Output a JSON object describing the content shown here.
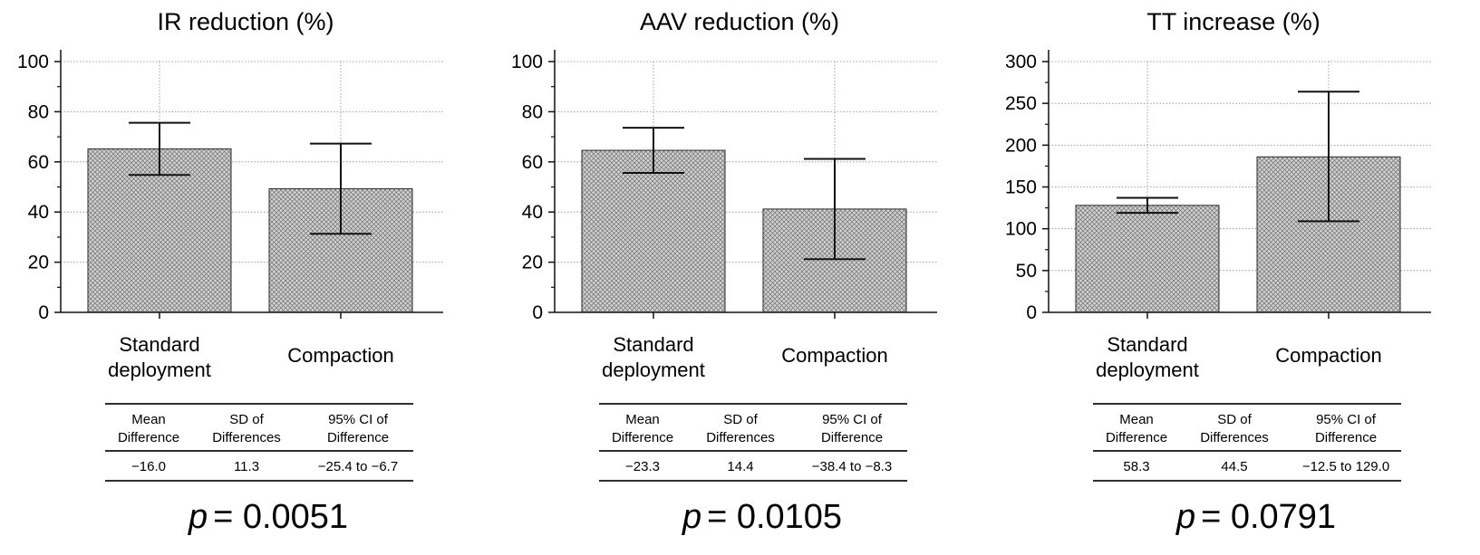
{
  "chart_data": [
    {
      "type": "bar",
      "title": "IR reduction (%)",
      "categories": [
        "Standard deployment",
        "Compaction"
      ],
      "values": [
        65.2,
        49.3
      ],
      "error_low": [
        54.8,
        31.3
      ],
      "error_high": [
        75.6,
        67.3
      ],
      "ylim": [
        0,
        100
      ],
      "yticks": [
        0,
        20,
        40,
        60,
        80,
        100
      ],
      "grid": true,
      "table": {
        "headers": [
          "Mean Difference",
          "SD of Differences",
          "95% CI of Difference"
        ],
        "values": [
          "−16.0",
          "11.3",
          "−25.4 to −6.7"
        ]
      },
      "p_label": "p",
      "p_value": "= 0.0051"
    },
    {
      "type": "bar",
      "title": "AAV reduction (%)",
      "categories": [
        "Standard deployment",
        "Compaction"
      ],
      "values": [
        64.6,
        41.2
      ],
      "error_low": [
        55.6,
        21.2
      ],
      "error_high": [
        73.6,
        61.2
      ],
      "ylim": [
        0,
        100
      ],
      "yticks": [
        0,
        20,
        40,
        60,
        80,
        100
      ],
      "grid": true,
      "table": {
        "headers": [
          "Mean Difference",
          "SD of Differences",
          "95% CI of Difference"
        ],
        "values": [
          "−23.3",
          "14.4",
          "−38.4 to −8.3"
        ]
      },
      "p_label": "p",
      "p_value": "= 0.0105"
    },
    {
      "type": "bar",
      "title": "TT increase (%)",
      "categories": [
        "Standard deployment",
        "Compaction"
      ],
      "values": [
        128,
        186
      ],
      "error_low": [
        119,
        109
      ],
      "error_high": [
        137,
        264
      ],
      "ylim": [
        0,
        300
      ],
      "yticks": [
        0,
        50,
        100,
        150,
        200,
        250,
        300
      ],
      "grid": true,
      "table": {
        "headers": [
          "Mean Difference",
          "SD of Differences",
          "95% CI of Difference"
        ],
        "values": [
          "58.3",
          "44.5",
          "−12.5 to 129.0"
        ]
      },
      "p_label": "p",
      "p_value": "= 0.0791"
    }
  ]
}
